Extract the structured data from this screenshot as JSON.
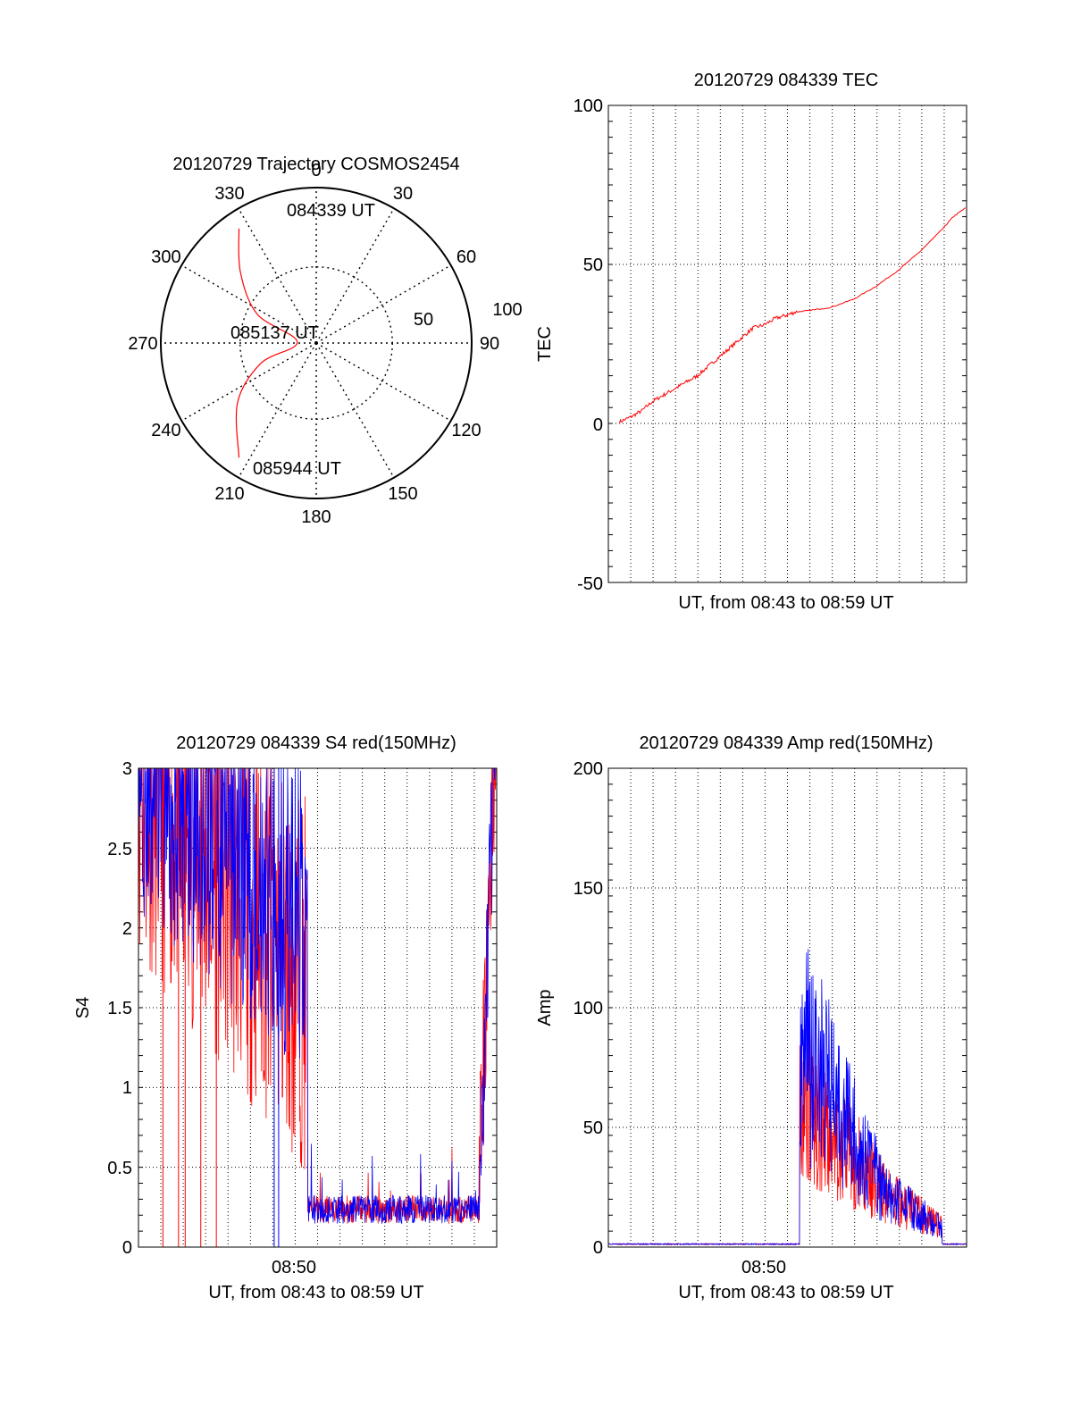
{
  "polar": {
    "title": "20120729 Trajectory COSMOS2454",
    "angle_labels": [
      "0",
      "30",
      "60",
      "90",
      "120",
      "150",
      "180",
      "210",
      "240",
      "270",
      "300",
      "330"
    ],
    "radial_labels": [
      "50",
      "100"
    ],
    "start_label": "084339 UT",
    "mid_label": "085137 UT",
    "end_label": "085944 UT",
    "colors": {
      "trajectory": "#ff0000",
      "axes": "#000000"
    },
    "trajectory_azimuth_elevation": [
      [
        326,
        10
      ],
      [
        313,
        30
      ],
      [
        296,
        52
      ],
      [
        273,
        79
      ],
      [
        250,
        56
      ],
      [
        233,
        33
      ],
      [
        214,
        10
      ]
    ]
  },
  "tec": {
    "title": "20120729 084339 TEC",
    "ylabel": "TEC",
    "xlabel": "UT, from 08:43 to 08:59 UT",
    "yticks": [
      "100",
      "50",
      "0",
      "-50"
    ],
    "ylim": [
      -50,
      100
    ],
    "xlim_min": [
      0,
      16.1
    ],
    "colors": {
      "line": "#ff0000"
    },
    "series_points": [
      [
        0.5,
        0.5
      ],
      [
        1.0,
        2
      ],
      [
        1.5,
        4
      ],
      [
        2.0,
        7
      ],
      [
        2.5,
        9
      ],
      [
        3.0,
        11
      ],
      [
        3.5,
        13
      ],
      [
        4.0,
        15
      ],
      [
        4.5,
        18
      ],
      [
        5.0,
        21
      ],
      [
        5.5,
        24
      ],
      [
        6.0,
        27
      ],
      [
        6.5,
        30
      ],
      [
        7.0,
        31
      ],
      [
        7.5,
        33
      ],
      [
        8.0,
        34
      ],
      [
        8.4,
        35
      ],
      [
        9.0,
        35.5
      ],
      [
        10.0,
        36.5
      ],
      [
        11.0,
        39
      ],
      [
        12.0,
        43
      ],
      [
        13.0,
        48
      ],
      [
        14.0,
        54
      ],
      [
        15.0,
        61
      ],
      [
        15.5,
        65
      ],
      [
        16.1,
        68
      ]
    ]
  },
  "s4": {
    "title": "20120729 084339 S4 red(150MHz)",
    "ylabel": "S4",
    "xlabel": "UT, from 08:43 to 08:59 UT",
    "xtick_label": "08:50",
    "yticks": [
      "3",
      "2.5",
      "2",
      "1.5",
      "1",
      "0.5",
      "0"
    ],
    "ylim": [
      0,
      3
    ],
    "xlim_min": [
      0,
      16.1
    ],
    "colors": {
      "red": "#ff0000",
      "blue": "#0000ff"
    }
  },
  "amp": {
    "title": "20120729 084339 Amp red(150MHz)",
    "ylabel": "Amp",
    "xlabel": "UT, from 08:43 to 08:59 UT",
    "xtick_label": "08:50",
    "yticks": [
      "200",
      "150",
      "100",
      "50",
      "0"
    ],
    "ylim": [
      0,
      200
    ],
    "xlim_min": [
      0,
      16.1
    ],
    "colors": {
      "red": "#ff0000",
      "blue": "#0000ff"
    }
  }
}
